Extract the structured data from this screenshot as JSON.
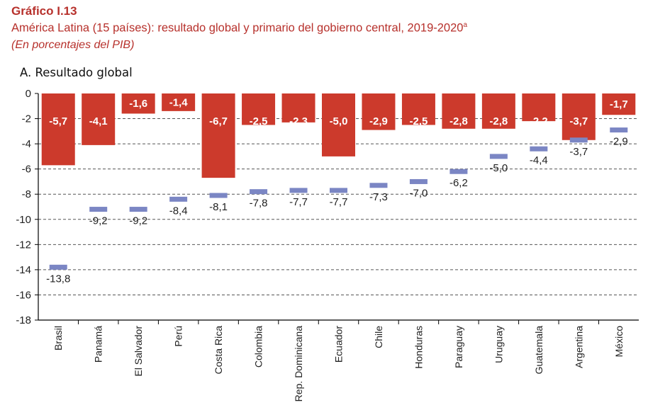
{
  "header": {
    "label": "Gráfico I.13",
    "title": "América Latina (15 países): resultado global y primario del gobierno central, 2019-2020",
    "title_sup": "a",
    "subtitle": "(En porcentajes del PIB)",
    "panel_title": "A. Resultado global"
  },
  "chart_data": {
    "type": "bar",
    "categories": [
      "Brasil",
      "Panamá",
      "El Salvador",
      "Perú",
      "Costa Rica",
      "Colombia",
      "Rep. Dominicana",
      "Ecuador",
      "Chile",
      "Honduras",
      "Paraguay",
      "Uruguay",
      "Guatemala",
      "Argentina",
      "México"
    ],
    "series": [
      {
        "values": [
          -5.7,
          -4.1,
          -1.6,
          -1.4,
          -6.7,
          -2.5,
          -2.3,
          -5.0,
          -2.9,
          -2.5,
          -2.8,
          -2.8,
          -2.2,
          -3.7,
          -1.7
        ],
        "color": "#cc3a2c",
        "mark": "bar"
      },
      {
        "values": [
          -13.8,
          -9.2,
          -9.2,
          -8.4,
          -8.1,
          -7.8,
          -7.7,
          -7.7,
          -7.3,
          -7.0,
          -6.2,
          -5.0,
          -4.4,
          -3.7,
          -2.9
        ],
        "color": "#7b86c4",
        "mark": "dash"
      }
    ],
    "ylim": [
      -18,
      0
    ],
    "yticks": [
      0,
      -2,
      -4,
      -6,
      -8,
      -10,
      -12,
      -14,
      -16,
      -18
    ],
    "grid": true,
    "bar_label_color": "#ffffff",
    "dash_label_color": "#222222"
  }
}
